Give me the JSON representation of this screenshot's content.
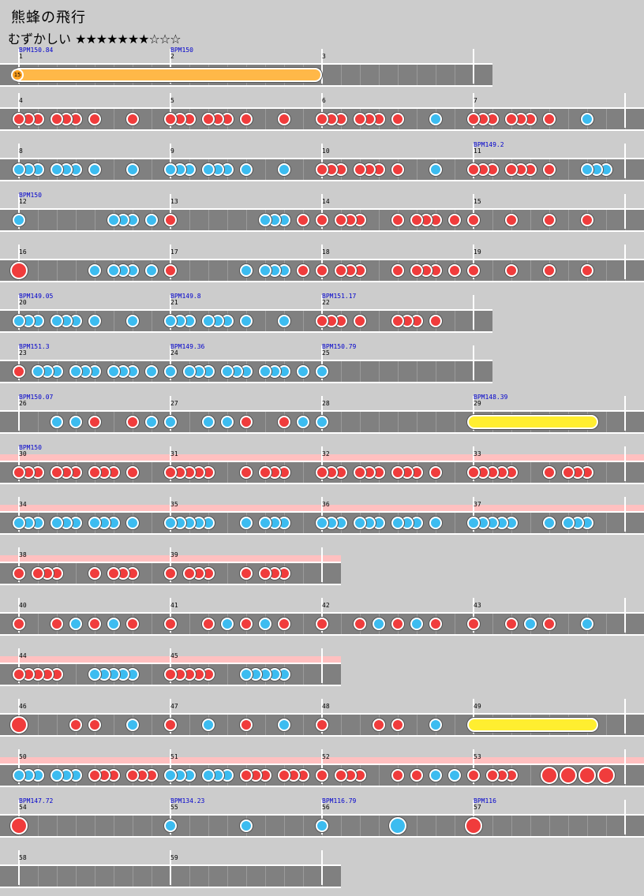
{
  "title": "熊蜂の飛行",
  "difficulty": {
    "label": "むずかしい",
    "stars": "★★★★★★★☆☆☆"
  },
  "colors": {
    "don": "#f03c3c",
    "ka": "#3cbcf0",
    "roll": "#ffee30",
    "balloon_roll": "#ffb848",
    "gogo": "#ffc0c0",
    "track": "#808080",
    "background": "#cccccc"
  },
  "rows": [
    {
      "measures": [
        1,
        2,
        3
      ],
      "beats_per_measure": 8,
      "gogo": false,
      "bpm": [
        {
          "measure": 1,
          "value": "BPM150.84"
        },
        {
          "measure": 2,
          "value": "BPM150"
        }
      ],
      "notes": [],
      "rolls": [
        {
          "kind": "balloon",
          "from": 0,
          "to": 16,
          "count": "15"
        }
      ]
    },
    {
      "measures": [
        4,
        5,
        6,
        7
      ],
      "beats_per_measure": 8,
      "gogo": false,
      "bpm": [],
      "notes": [
        "d",
        0,
        "d",
        0.5,
        "d",
        1,
        "d",
        2,
        "d",
        2.5,
        "d",
        3,
        "d",
        4,
        "d",
        6,
        "d",
        8,
        "d",
        8.5,
        "d",
        9,
        "d",
        10,
        "d",
        10.5,
        "d",
        11,
        "d",
        12,
        "d",
        14,
        "d",
        16,
        "d",
        16.5,
        "d",
        17,
        "d",
        18,
        "d",
        18.5,
        "d",
        19,
        "d",
        20,
        "k",
        22,
        "d",
        24,
        "d",
        24.5,
        "d",
        25,
        "d",
        26,
        "d",
        26.5,
        "d",
        27,
        "d",
        28,
        "k",
        30
      ],
      "rolls": []
    },
    {
      "measures": [
        8,
        9,
        10,
        11
      ],
      "beats_per_measure": 8,
      "gogo": false,
      "bpm": [
        {
          "measure": 11,
          "value": "BPM149.2"
        }
      ],
      "notes": [
        "k",
        0,
        "k",
        0.5,
        "k",
        1,
        "k",
        2,
        "k",
        2.5,
        "k",
        3,
        "k",
        4,
        "k",
        6,
        "k",
        8,
        "k",
        8.5,
        "k",
        9,
        "k",
        10,
        "k",
        10.5,
        "k",
        11,
        "k",
        12,
        "k",
        14,
        "d",
        16,
        "d",
        16.5,
        "d",
        17,
        "d",
        18,
        "d",
        18.5,
        "d",
        19,
        "d",
        20,
        "k",
        22,
        "d",
        24,
        "d",
        24.5,
        "d",
        25,
        "d",
        26,
        "d",
        26.5,
        "d",
        27,
        "d",
        28,
        "k",
        30,
        "k",
        30.5,
        "k",
        31
      ],
      "rolls": []
    },
    {
      "measures": [
        12,
        13,
        14,
        15
      ],
      "beats_per_measure": 8,
      "gogo": false,
      "bpm": [
        {
          "measure": 12,
          "value": "BPM150"
        }
      ],
      "notes": [
        "k",
        0,
        "k",
        5,
        "k",
        5.5,
        "k",
        6,
        "k",
        7,
        "d",
        8,
        "k",
        13,
        "k",
        13.5,
        "k",
        14,
        "d",
        15,
        "d",
        16,
        "d",
        17,
        "d",
        17.5,
        "d",
        18,
        "d",
        20,
        "d",
        21,
        "d",
        21.5,
        "d",
        22,
        "d",
        23,
        "d",
        24,
        "d",
        26,
        "d",
        28,
        "d",
        30
      ],
      "rolls": []
    },
    {
      "measures": [
        16,
        17,
        18,
        19
      ],
      "beats_per_measure": 8,
      "gogo": false,
      "bpm": [],
      "notes": [
        "D",
        0,
        "k",
        4,
        "k",
        5,
        "k",
        5.5,
        "k",
        6,
        "k",
        7,
        "d",
        8,
        "k",
        12,
        "k",
        13,
        "k",
        13.5,
        "k",
        14,
        "d",
        15,
        "d",
        16,
        "d",
        17,
        "d",
        17.5,
        "d",
        18,
        "d",
        20,
        "d",
        21,
        "d",
        21.5,
        "d",
        22,
        "d",
        23,
        "d",
        24,
        "d",
        26,
        "d",
        28,
        "d",
        30
      ],
      "rolls": []
    },
    {
      "measures": [
        20,
        21,
        22
      ],
      "beats_per_measure": 8,
      "gogo": false,
      "bpm": [
        {
          "measure": 20,
          "value": "BPM149.05"
        },
        {
          "measure": 21,
          "value": "BPM149.8"
        },
        {
          "measure": 22,
          "value": "BPM151.17"
        }
      ],
      "notes": [
        "k",
        0,
        "k",
        0.5,
        "k",
        1,
        "k",
        2,
        "k",
        2.5,
        "k",
        3,
        "k",
        4,
        "k",
        6,
        "k",
        8,
        "k",
        8.5,
        "k",
        9,
        "k",
        10,
        "k",
        10.5,
        "k",
        11,
        "k",
        12,
        "k",
        14,
        "d",
        16,
        "d",
        16.5,
        "d",
        17,
        "d",
        18,
        "d",
        20,
        "d",
        20.5,
        "d",
        21,
        "d",
        22
      ],
      "rolls": []
    },
    {
      "measures": [
        23,
        24,
        25
      ],
      "beats_per_measure": 8,
      "gogo": false,
      "bpm": [
        {
          "measure": 23,
          "value": "BPM151.3"
        },
        {
          "measure": 24,
          "value": "BPM149.36"
        },
        {
          "measure": 25,
          "value": "BPM150.79"
        }
      ],
      "notes": [
        "d",
        0,
        "k",
        1,
        "k",
        1.5,
        "k",
        2,
        "k",
        3,
        "k",
        3.5,
        "k",
        4,
        "k",
        5,
        "k",
        5.5,
        "k",
        6,
        "k",
        7,
        "k",
        8,
        "k",
        9,
        "k",
        9.5,
        "k",
        10,
        "k",
        11,
        "k",
        11.5,
        "k",
        12,
        "k",
        13,
        "k",
        13.5,
        "k",
        14,
        "k",
        15,
        "k",
        16
      ],
      "rolls": []
    },
    {
      "measures": [
        26,
        27,
        28,
        29
      ],
      "beats_per_measure": 8,
      "gogo": false,
      "bpm": [
        {
          "measure": 26,
          "value": "BPM150.07"
        },
        {
          "measure": 29,
          "value": "BPM148.39"
        }
      ],
      "notes": [
        "k",
        2,
        "k",
        3,
        "d",
        4,
        "d",
        6,
        "k",
        7,
        "k",
        8,
        "k",
        10,
        "k",
        11,
        "d",
        12,
        "d",
        14,
        "k",
        15,
        "k",
        16
      ],
      "rolls": [
        {
          "kind": "roll",
          "from": 24,
          "to": 30.6
        }
      ]
    },
    {
      "measures": [
        30,
        31,
        32,
        33
      ],
      "beats_per_measure": 8,
      "gogo": true,
      "bpm": [
        {
          "measure": 30,
          "value": "BPM150"
        }
      ],
      "notes": [
        "d",
        0,
        "d",
        0.5,
        "d",
        1,
        "d",
        2,
        "d",
        2.5,
        "d",
        3,
        "d",
        4,
        "d",
        4.5,
        "d",
        5,
        "d",
        6,
        "d",
        8,
        "d",
        8.5,
        "d",
        9,
        "d",
        9.5,
        "d",
        10,
        "d",
        12,
        "d",
        13,
        "d",
        13.5,
        "d",
        14,
        "d",
        16,
        "d",
        16.5,
        "d",
        17,
        "d",
        18,
        "d",
        18.5,
        "d",
        19,
        "d",
        20,
        "d",
        20.5,
        "d",
        21,
        "d",
        22,
        "d",
        24,
        "d",
        24.5,
        "d",
        25,
        "d",
        25.5,
        "d",
        26,
        "d",
        28,
        "d",
        29,
        "d",
        29.5,
        "d",
        30
      ],
      "rolls": []
    },
    {
      "measures": [
        34,
        35,
        36,
        37
      ],
      "beats_per_measure": 8,
      "gogo": true,
      "bpm": [],
      "notes": [
        "k",
        0,
        "k",
        0.5,
        "k",
        1,
        "k",
        2,
        "k",
        2.5,
        "k",
        3,
        "k",
        4,
        "k",
        4.5,
        "k",
        5,
        "k",
        6,
        "k",
        8,
        "k",
        8.5,
        "k",
        9,
        "k",
        9.5,
        "k",
        10,
        "k",
        12,
        "k",
        13,
        "k",
        13.5,
        "k",
        14,
        "k",
        16,
        "k",
        16.5,
        "k",
        17,
        "k",
        18,
        "k",
        18.5,
        "k",
        19,
        "k",
        20,
        "k",
        20.5,
        "k",
        21,
        "k",
        22,
        "k",
        24,
        "k",
        24.5,
        "k",
        25,
        "k",
        25.5,
        "k",
        26,
        "k",
        28,
        "k",
        29,
        "k",
        29.5,
        "k",
        30
      ],
      "rolls": []
    },
    {
      "measures": [
        38,
        39
      ],
      "beats_per_measure": 8,
      "gogo": true,
      "bpm": [],
      "notes": [
        "d",
        0,
        "d",
        1,
        "d",
        1.5,
        "d",
        2,
        "d",
        4,
        "d",
        5,
        "d",
        5.5,
        "d",
        6,
        "d",
        8,
        "d",
        9,
        "d",
        9.5,
        "d",
        10,
        "d",
        12,
        "d",
        13,
        "d",
        13.5,
        "d",
        14
      ],
      "rolls": []
    },
    {
      "measures": [
        40,
        41,
        42,
        43
      ],
      "beats_per_measure": 8,
      "gogo": false,
      "bpm": [],
      "notes": [
        "d",
        0,
        "d",
        2,
        "k",
        3,
        "d",
        4,
        "k",
        5,
        "d",
        6,
        "d",
        8,
        "d",
        10,
        "k",
        11,
        "d",
        12,
        "k",
        13,
        "d",
        14,
        "d",
        16,
        "d",
        18,
        "k",
        19,
        "d",
        20,
        "k",
        21,
        "d",
        22,
        "d",
        24,
        "d",
        26,
        "k",
        27,
        "d",
        28,
        "k",
        30
      ],
      "rolls": []
    },
    {
      "measures": [
        44,
        45
      ],
      "beats_per_measure": 8,
      "gogo": true,
      "bpm": [],
      "notes": [
        "d",
        0,
        "d",
        0.5,
        "d",
        1,
        "d",
        1.5,
        "d",
        2,
        "k",
        4,
        "k",
        4.5,
        "k",
        5,
        "k",
        5.5,
        "k",
        6,
        "d",
        8,
        "d",
        8.5,
        "d",
        9,
        "d",
        9.5,
        "d",
        10,
        "k",
        12,
        "k",
        12.5,
        "k",
        13,
        "k",
        13.5,
        "k",
        14
      ],
      "rolls": []
    },
    {
      "measures": [
        46,
        47,
        48,
        49
      ],
      "beats_per_measure": 8,
      "gogo": false,
      "bpm": [],
      "notes": [
        "D",
        0,
        "d",
        3,
        "d",
        4,
        "k",
        6,
        "d",
        8,
        "k",
        10,
        "d",
        12,
        "k",
        14,
        "d",
        16,
        "d",
        19,
        "d",
        20,
        "k",
        22
      ],
      "rolls": [
        {
          "kind": "roll",
          "from": 24,
          "to": 30.6
        }
      ]
    },
    {
      "measures": [
        50,
        51,
        52,
        53
      ],
      "beats_per_measure": 8,
      "gogo": true,
      "bpm": [],
      "notes": [
        "k",
        0,
        "k",
        0.5,
        "k",
        1,
        "k",
        2,
        "k",
        2.5,
        "k",
        3,
        "d",
        4,
        "d",
        4.5,
        "d",
        5,
        "d",
        6,
        "d",
        6.5,
        "d",
        7,
        "k",
        8,
        "k",
        8.5,
        "k",
        9,
        "k",
        10,
        "k",
        10.5,
        "k",
        11,
        "d",
        12,
        "d",
        12.5,
        "d",
        13,
        "d",
        14,
        "d",
        14.5,
        "d",
        15,
        "d",
        16,
        "d",
        17,
        "d",
        17.5,
        "d",
        18,
        "d",
        20,
        "d",
        21,
        "k",
        22,
        "k",
        23,
        "d",
        24,
        "d",
        25,
        "d",
        25.5,
        "d",
        26,
        "D",
        28,
        "D",
        29,
        "D",
        30,
        "D",
        31
      ],
      "rolls": []
    },
    {
      "measures": [
        54,
        55,
        56,
        57
      ],
      "beats_per_measure": 8,
      "gogo": false,
      "bpm": [
        {
          "measure": 54,
          "value": "BPM147.72"
        },
        {
          "measure": 55,
          "value": "BPM134.23"
        },
        {
          "measure": 56,
          "value": "BPM116.79"
        },
        {
          "measure": 57,
          "value": "BPM116"
        }
      ],
      "notes": [
        "D",
        0,
        "k",
        8,
        "k",
        12,
        "k",
        16,
        "K",
        20,
        "D",
        24
      ],
      "rolls": []
    },
    {
      "measures": [
        58,
        59
      ],
      "beats_per_measure": 8,
      "gogo": false,
      "bpm": [],
      "notes": [],
      "rolls": []
    }
  ]
}
